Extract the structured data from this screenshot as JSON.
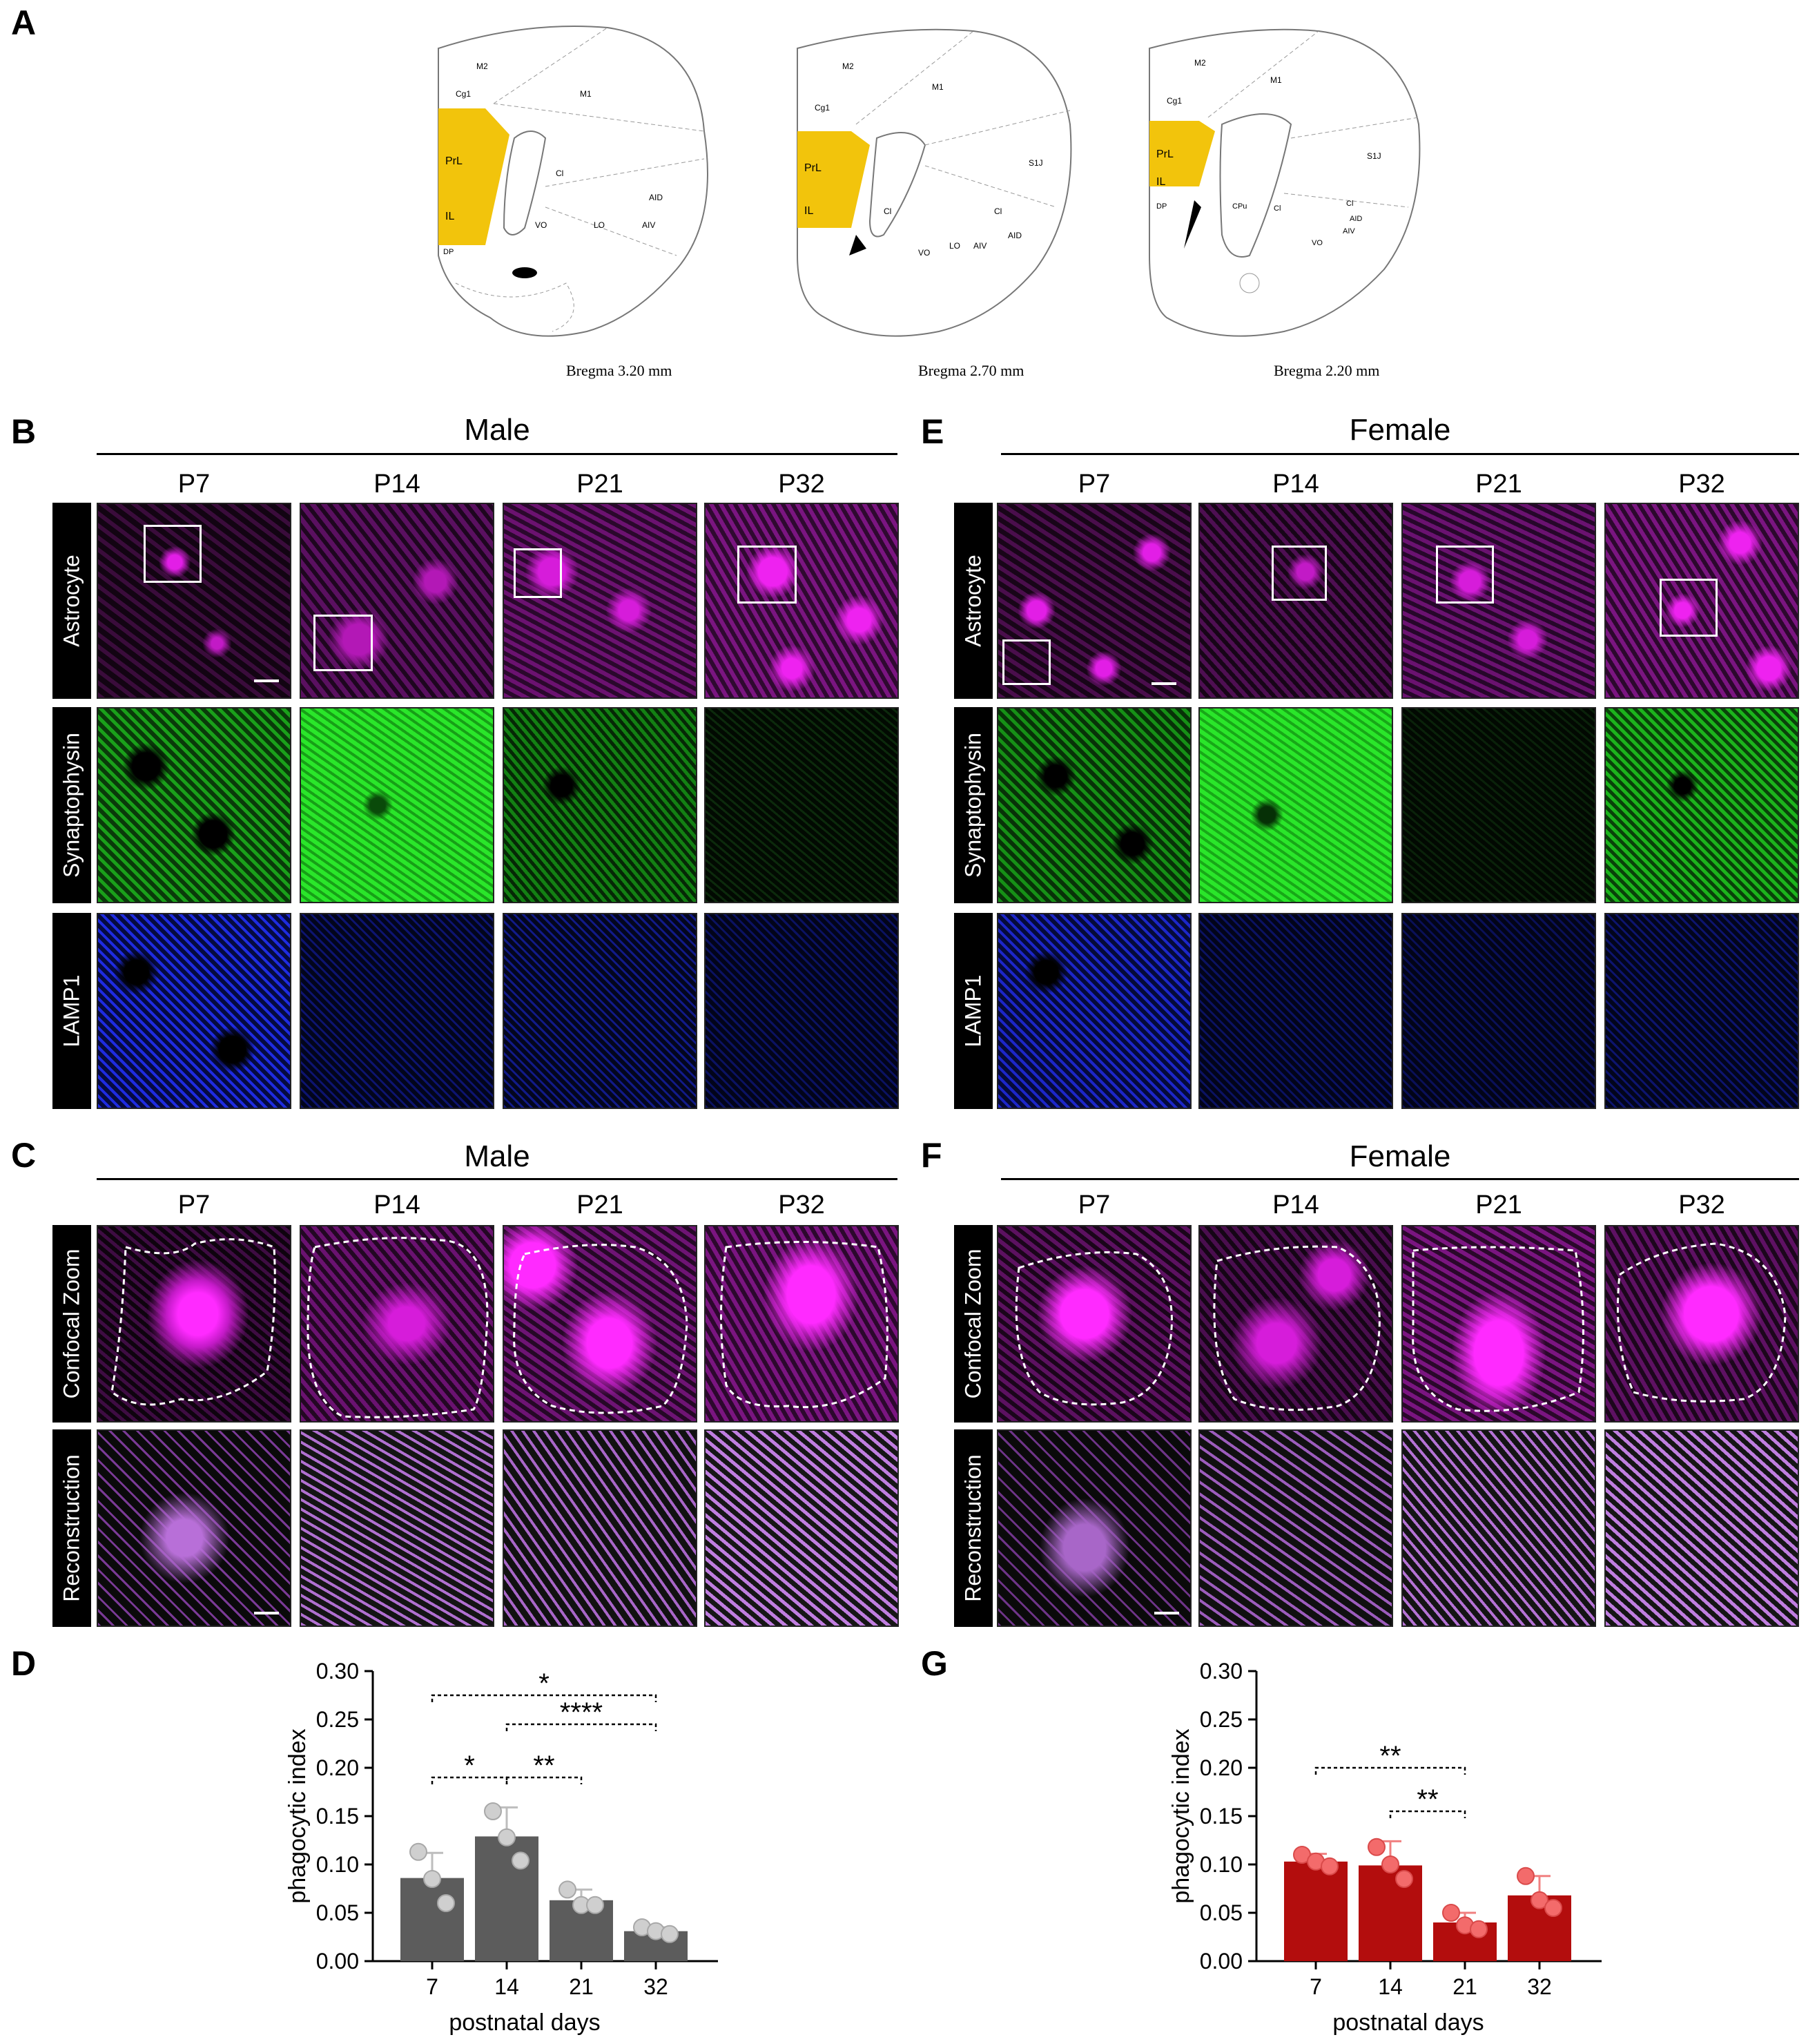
{
  "panels": {
    "A": "A",
    "B": "B",
    "C": "C",
    "D": "D",
    "E": "E",
    "F": "F",
    "G": "G"
  },
  "atlas": {
    "sections": [
      {
        "caption": "Bregma 3.20 mm",
        "labels": [
          "M2",
          "Cg1",
          "M1",
          "PrL",
          "Cl",
          "IL",
          "AID",
          "VO",
          "LO",
          "AIV",
          "DP"
        ]
      },
      {
        "caption": "Bregma 2.70 mm",
        "labels": [
          "M2",
          "Cg1",
          "M1",
          "S1J",
          "PrL",
          "IL",
          "Cl",
          "Cl",
          "AID",
          "VO",
          "LO",
          "AIV"
        ]
      },
      {
        "caption": "Bregma 2.20 mm",
        "labels": [
          "M2",
          "Cg1",
          "M1",
          "S1J",
          "PrL",
          "IL",
          "DP",
          "CPu",
          "Cl",
          "Cl",
          "AID",
          "AIV",
          "VO"
        ]
      }
    ],
    "highlight_color": "#f2c40c"
  },
  "groups": {
    "male": "Male",
    "female": "Female"
  },
  "timepoints": [
    "P7",
    "P14",
    "P21",
    "P32"
  ],
  "rows_top": {
    "astrocyte": "Astrocyte",
    "synaptophysin": "Synaptophysin",
    "lamp1": "LAMP1"
  },
  "rows_bottom": {
    "confocal": "Confocal Zoom",
    "reconstruction": "Reconstruction"
  },
  "colors": {
    "magenta": "#e21ee6",
    "green": "#19d219",
    "blue": "#1e2be0",
    "male_bar": "#5c5c5c",
    "female_bar": "#b30d0d"
  },
  "chart_data": [
    {
      "panel": "D",
      "type": "bar",
      "categories": [
        "7",
        "14",
        "21",
        "32"
      ],
      "values": [
        0.086,
        0.129,
        0.063,
        0.031
      ],
      "errors": [
        0.026,
        0.03,
        0.011,
        0.004
      ],
      "points": [
        [
          0.113,
          0.085,
          0.06
        ],
        [
          0.155,
          0.128,
          0.104
        ],
        [
          0.074,
          0.058,
          0.058
        ],
        [
          0.035,
          0.031,
          0.028
        ]
      ],
      "xlabel": "postnatal days",
      "ylabel": "phagocytic index",
      "ylim": [
        0,
        0.3
      ],
      "yticks": [
        "0.00",
        "0.05",
        "0.10",
        "0.15",
        "0.20",
        "0.25",
        "0.30"
      ],
      "significance": [
        {
          "from": "7",
          "to": "32",
          "label": "*"
        },
        {
          "from": "14",
          "to": "32",
          "label": "****"
        },
        {
          "from": "7",
          "to": "14",
          "label": "*"
        },
        {
          "from": "14",
          "to": "21",
          "label": "**"
        }
      ]
    },
    {
      "panel": "G",
      "type": "bar",
      "categories": [
        "7",
        "14",
        "21",
        "32"
      ],
      "values": [
        0.103,
        0.099,
        0.04,
        0.068
      ],
      "errors": [
        0.008,
        0.025,
        0.01,
        0.02
      ],
      "points": [
        [
          0.11,
          0.103,
          0.098
        ],
        [
          0.118,
          0.1,
          0.085
        ],
        [
          0.05,
          0.037,
          0.033
        ],
        [
          0.088,
          0.063,
          0.055
        ]
      ],
      "xlabel": "postnatal days",
      "ylabel": "phagocytic index",
      "ylim": [
        0,
        0.3
      ],
      "yticks": [
        "0.00",
        "0.05",
        "0.10",
        "0.15",
        "0.20",
        "0.25",
        "0.30"
      ],
      "significance": [
        {
          "from": "7",
          "to": "21",
          "label": "**"
        },
        {
          "from": "14",
          "to": "21",
          "label": "**"
        }
      ]
    }
  ]
}
